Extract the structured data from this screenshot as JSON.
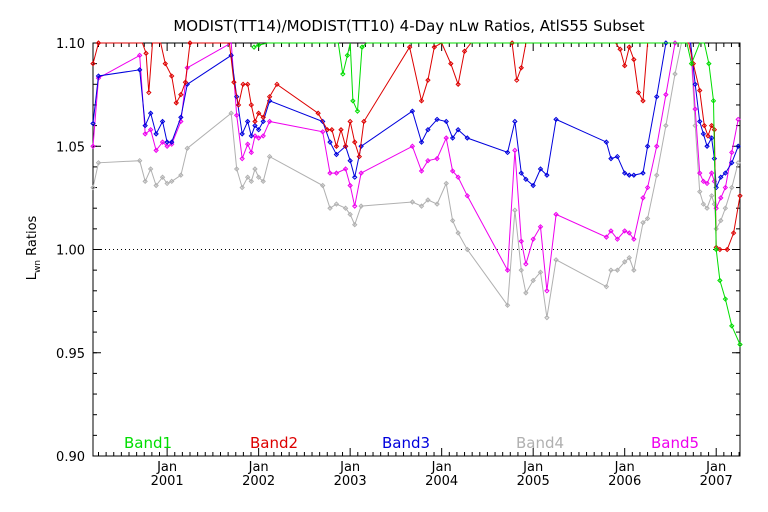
{
  "chart_data": {
    "type": "line",
    "title": "MODIST(TT14)/MODIST(TT10) 4-Day nLw Ratios, AtlS55 Subset",
    "ylabel_main": "L",
    "ylabel_sub": "wn",
    "ylabel_rest": " Ratios",
    "ylim": [
      0.9,
      1.1
    ],
    "xlim": [
      2000.19,
      2007.26
    ],
    "y_ticks": [
      0.9,
      0.95,
      1.0,
      1.05,
      1.1
    ],
    "y_tick_labels": [
      "0.90",
      "0.95",
      "1.00",
      "1.05",
      "1.10"
    ],
    "x_ticks": [
      2001.0,
      2002.0,
      2003.0,
      2004.0,
      2005.0,
      2006.0,
      2007.0
    ],
    "x_tick_month": "Jan",
    "x_tick_labels": [
      "2001",
      "2002",
      "2003",
      "2004",
      "2005",
      "2006",
      "2007"
    ],
    "reference_line": 1.0,
    "series": [
      {
        "name": "Band1",
        "color": "#00dd00",
        "points": [
          [
            2001.95,
            1.098
          ],
          [
            2002.0,
            1.099
          ],
          [
            2002.1,
            1.11
          ],
          [
            2002.87,
            1.11
          ],
          [
            2002.92,
            1.085
          ],
          [
            2002.97,
            1.094
          ],
          [
            2003.0,
            1.11
          ],
          [
            2003.03,
            1.072
          ],
          [
            2003.08,
            1.067
          ],
          [
            2003.13,
            1.098
          ],
          [
            2003.18,
            1.11
          ],
          [
            2006.6,
            1.11
          ],
          [
            2006.68,
            1.108
          ],
          [
            2006.73,
            1.09
          ],
          [
            2006.82,
            1.11
          ],
          [
            2006.87,
            1.11
          ],
          [
            2006.92,
            1.09
          ],
          [
            2006.97,
            1.072
          ],
          [
            2007.0,
            1.0
          ],
          [
            2007.04,
            0.985
          ],
          [
            2007.1,
            0.976
          ],
          [
            2007.17,
            0.963
          ],
          [
            2007.26,
            0.954
          ]
        ]
      },
      {
        "name": "Band2",
        "color": "#dd0000",
        "points": [
          [
            2000.19,
            1.09
          ],
          [
            2000.25,
            1.1
          ],
          [
            2000.28,
            1.11
          ],
          [
            2000.73,
            1.11
          ],
          [
            2000.77,
            1.095
          ],
          [
            2000.8,
            1.076
          ],
          [
            2000.84,
            1.11
          ],
          [
            2000.93,
            1.11
          ],
          [
            2000.98,
            1.09
          ],
          [
            2001.05,
            1.084
          ],
          [
            2001.1,
            1.071
          ],
          [
            2001.15,
            1.075
          ],
          [
            2001.2,
            1.081
          ],
          [
            2001.25,
            1.1
          ],
          [
            2001.3,
            1.11
          ],
          [
            2001.68,
            1.11
          ],
          [
            2001.73,
            1.081
          ],
          [
            2001.78,
            1.07
          ],
          [
            2001.83,
            1.08
          ],
          [
            2001.88,
            1.08
          ],
          [
            2001.92,
            1.07
          ],
          [
            2001.96,
            1.062
          ],
          [
            2002.0,
            1.066
          ],
          [
            2002.05,
            1.064
          ],
          [
            2002.12,
            1.074
          ],
          [
            2002.2,
            1.08
          ],
          [
            2002.65,
            1.066
          ],
          [
            2002.75,
            1.058
          ],
          [
            2002.8,
            1.058
          ],
          [
            2002.85,
            1.05
          ],
          [
            2002.9,
            1.058
          ],
          [
            2002.95,
            1.05
          ],
          [
            2003.0,
            1.062
          ],
          [
            2003.05,
            1.052
          ],
          [
            2003.1,
            1.045
          ],
          [
            2003.15,
            1.062
          ],
          [
            2003.65,
            1.098
          ],
          [
            2003.78,
            1.072
          ],
          [
            2003.85,
            1.082
          ],
          [
            2003.92,
            1.098
          ],
          [
            2004.0,
            1.11
          ],
          [
            2004.1,
            1.09
          ],
          [
            2004.18,
            1.08
          ],
          [
            2004.25,
            1.096
          ],
          [
            2004.32,
            1.11
          ],
          [
            2004.72,
            1.11
          ],
          [
            2004.77,
            1.1
          ],
          [
            2004.82,
            1.082
          ],
          [
            2004.87,
            1.088
          ],
          [
            2004.92,
            1.11
          ],
          [
            2005.9,
            1.11
          ],
          [
            2005.95,
            1.097
          ],
          [
            2006.0,
            1.089
          ],
          [
            2006.05,
            1.098
          ],
          [
            2006.1,
            1.092
          ],
          [
            2006.15,
            1.076
          ],
          [
            2006.2,
            1.072
          ],
          [
            2006.25,
            1.11
          ],
          [
            2006.7,
            1.11
          ],
          [
            2006.75,
            1.09
          ],
          [
            2006.82,
            1.077
          ],
          [
            2006.87,
            1.06
          ],
          [
            2006.91,
            1.055
          ],
          [
            2006.95,
            1.06
          ],
          [
            2006.98,
            1.058
          ],
          [
            2007.0,
            1.001
          ],
          [
            2007.04,
            1.0
          ],
          [
            2007.12,
            1.0
          ],
          [
            2007.19,
            1.008
          ],
          [
            2007.26,
            1.026
          ]
        ]
      },
      {
        "name": "Band3",
        "color": "#0000dd",
        "points": [
          [
            2000.19,
            1.061
          ],
          [
            2000.25,
            1.084
          ],
          [
            2000.7,
            1.087
          ],
          [
            2000.76,
            1.06
          ],
          [
            2000.82,
            1.066
          ],
          [
            2000.88,
            1.056
          ],
          [
            2000.95,
            1.062
          ],
          [
            2001.0,
            1.052
          ],
          [
            2001.05,
            1.052
          ],
          [
            2001.15,
            1.064
          ],
          [
            2001.22,
            1.08
          ],
          [
            2001.7,
            1.094
          ],
          [
            2001.76,
            1.074
          ],
          [
            2001.82,
            1.056
          ],
          [
            2001.88,
            1.062
          ],
          [
            2001.92,
            1.055
          ],
          [
            2001.96,
            1.06
          ],
          [
            2002.0,
            1.058
          ],
          [
            2002.05,
            1.062
          ],
          [
            2002.12,
            1.072
          ],
          [
            2002.7,
            1.062
          ],
          [
            2002.78,
            1.052
          ],
          [
            2002.85,
            1.046
          ],
          [
            2002.95,
            1.05
          ],
          [
            2003.0,
            1.043
          ],
          [
            2003.05,
            1.035
          ],
          [
            2003.12,
            1.05
          ],
          [
            2003.68,
            1.067
          ],
          [
            2003.78,
            1.052
          ],
          [
            2003.85,
            1.058
          ],
          [
            2003.95,
            1.063
          ],
          [
            2004.05,
            1.062
          ],
          [
            2004.12,
            1.054
          ],
          [
            2004.18,
            1.058
          ],
          [
            2004.28,
            1.054
          ],
          [
            2004.72,
            1.047
          ],
          [
            2004.8,
            1.062
          ],
          [
            2004.87,
            1.037
          ],
          [
            2004.92,
            1.034
          ],
          [
            2005.0,
            1.031
          ],
          [
            2005.08,
            1.039
          ],
          [
            2005.15,
            1.036
          ],
          [
            2005.25,
            1.063
          ],
          [
            2005.8,
            1.052
          ],
          [
            2005.85,
            1.044
          ],
          [
            2005.92,
            1.045
          ],
          [
            2006.0,
            1.037
          ],
          [
            2006.05,
            1.036
          ],
          [
            2006.1,
            1.036
          ],
          [
            2006.2,
            1.037
          ],
          [
            2006.25,
            1.05
          ],
          [
            2006.35,
            1.074
          ],
          [
            2006.45,
            1.1
          ],
          [
            2006.52,
            1.11
          ],
          [
            2006.72,
            1.11
          ],
          [
            2006.77,
            1.08
          ],
          [
            2006.82,
            1.062
          ],
          [
            2006.86,
            1.056
          ],
          [
            2006.9,
            1.05
          ],
          [
            2006.95,
            1.054
          ],
          [
            2006.98,
            1.044
          ],
          [
            2007.0,
            1.03
          ],
          [
            2007.05,
            1.035
          ],
          [
            2007.1,
            1.037
          ],
          [
            2007.17,
            1.042
          ],
          [
            2007.24,
            1.05
          ]
        ]
      },
      {
        "name": "Band4",
        "color": "#b0b0b0",
        "points": [
          [
            2000.19,
            1.03
          ],
          [
            2000.25,
            1.042
          ],
          [
            2000.7,
            1.043
          ],
          [
            2000.76,
            1.033
          ],
          [
            2000.82,
            1.039
          ],
          [
            2000.88,
            1.031
          ],
          [
            2000.95,
            1.035
          ],
          [
            2001.0,
            1.032
          ],
          [
            2001.05,
            1.033
          ],
          [
            2001.15,
            1.036
          ],
          [
            2001.22,
            1.049
          ],
          [
            2001.7,
            1.066
          ],
          [
            2001.76,
            1.039
          ],
          [
            2001.82,
            1.03
          ],
          [
            2001.88,
            1.035
          ],
          [
            2001.92,
            1.033
          ],
          [
            2001.96,
            1.039
          ],
          [
            2002.0,
            1.035
          ],
          [
            2002.05,
            1.033
          ],
          [
            2002.12,
            1.045
          ],
          [
            2002.7,
            1.031
          ],
          [
            2002.78,
            1.02
          ],
          [
            2002.85,
            1.022
          ],
          [
            2002.95,
            1.02
          ],
          [
            2003.0,
            1.017
          ],
          [
            2003.05,
            1.012
          ],
          [
            2003.12,
            1.021
          ],
          [
            2003.68,
            1.023
          ],
          [
            2003.78,
            1.021
          ],
          [
            2003.85,
            1.024
          ],
          [
            2003.95,
            1.022
          ],
          [
            2004.05,
            1.032
          ],
          [
            2004.12,
            1.014
          ],
          [
            2004.18,
            1.008
          ],
          [
            2004.28,
            1.0
          ],
          [
            2004.72,
            0.973
          ],
          [
            2004.8,
            1.019
          ],
          [
            2004.87,
            0.99
          ],
          [
            2004.92,
            0.979
          ],
          [
            2005.0,
            0.985
          ],
          [
            2005.08,
            0.989
          ],
          [
            2005.15,
            0.967
          ],
          [
            2005.25,
            0.995
          ],
          [
            2005.8,
            0.982
          ],
          [
            2005.85,
            0.99
          ],
          [
            2005.92,
            0.99
          ],
          [
            2006.0,
            0.994
          ],
          [
            2006.05,
            0.996
          ],
          [
            2006.1,
            0.99
          ],
          [
            2006.2,
            1.013
          ],
          [
            2006.25,
            1.015
          ],
          [
            2006.35,
            1.036
          ],
          [
            2006.45,
            1.06
          ],
          [
            2006.55,
            1.085
          ],
          [
            2006.62,
            1.11
          ],
          [
            2006.72,
            1.11
          ],
          [
            2006.77,
            1.06
          ],
          [
            2006.82,
            1.028
          ],
          [
            2006.86,
            1.022
          ],
          [
            2006.9,
            1.02
          ],
          [
            2006.95,
            1.026
          ],
          [
            2006.98,
            1.022
          ],
          [
            2007.0,
            1.01
          ],
          [
            2007.05,
            1.014
          ],
          [
            2007.1,
            1.02
          ],
          [
            2007.17,
            1.03
          ],
          [
            2007.24,
            1.042
          ]
        ]
      },
      {
        "name": "Band5",
        "color": "#ee00ee",
        "points": [
          [
            2000.19,
            1.05
          ],
          [
            2000.25,
            1.083
          ],
          [
            2000.7,
            1.094
          ],
          [
            2000.76,
            1.056
          ],
          [
            2000.82,
            1.058
          ],
          [
            2000.88,
            1.048
          ],
          [
            2000.95,
            1.052
          ],
          [
            2001.0,
            1.05
          ],
          [
            2001.05,
            1.051
          ],
          [
            2001.15,
            1.062
          ],
          [
            2001.22,
            1.088
          ],
          [
            2001.7,
            1.105
          ],
          [
            2001.76,
            1.065
          ],
          [
            2001.82,
            1.044
          ],
          [
            2001.88,
            1.051
          ],
          [
            2001.92,
            1.047
          ],
          [
            2001.96,
            1.055
          ],
          [
            2002.0,
            1.054
          ],
          [
            2002.05,
            1.055
          ],
          [
            2002.12,
            1.062
          ],
          [
            2002.7,
            1.057
          ],
          [
            2002.78,
            1.037
          ],
          [
            2002.85,
            1.037
          ],
          [
            2002.95,
            1.039
          ],
          [
            2003.0,
            1.031
          ],
          [
            2003.05,
            1.021
          ],
          [
            2003.12,
            1.037
          ],
          [
            2003.68,
            1.05
          ],
          [
            2003.78,
            1.038
          ],
          [
            2003.85,
            1.043
          ],
          [
            2003.95,
            1.044
          ],
          [
            2004.05,
            1.054
          ],
          [
            2004.12,
            1.038
          ],
          [
            2004.18,
            1.035
          ],
          [
            2004.28,
            1.026
          ],
          [
            2004.72,
            0.99
          ],
          [
            2004.8,
            1.048
          ],
          [
            2004.87,
            1.004
          ],
          [
            2004.92,
            0.993
          ],
          [
            2005.0,
            1.005
          ],
          [
            2005.08,
            1.011
          ],
          [
            2005.15,
            0.98
          ],
          [
            2005.25,
            1.017
          ],
          [
            2005.8,
            1.006
          ],
          [
            2005.85,
            1.009
          ],
          [
            2005.92,
            1.005
          ],
          [
            2006.0,
            1.009
          ],
          [
            2006.05,
            1.008
          ],
          [
            2006.1,
            1.005
          ],
          [
            2006.2,
            1.025
          ],
          [
            2006.25,
            1.03
          ],
          [
            2006.35,
            1.05
          ],
          [
            2006.45,
            1.075
          ],
          [
            2006.55,
            1.1
          ],
          [
            2006.6,
            1.11
          ],
          [
            2006.72,
            1.11
          ],
          [
            2006.77,
            1.068
          ],
          [
            2006.82,
            1.037
          ],
          [
            2006.86,
            1.033
          ],
          [
            2006.9,
            1.032
          ],
          [
            2006.95,
            1.037
          ],
          [
            2006.98,
            1.033
          ],
          [
            2007.0,
            1.02
          ],
          [
            2007.05,
            1.025
          ],
          [
            2007.1,
            1.03
          ],
          [
            2007.17,
            1.047
          ],
          [
            2007.24,
            1.063
          ]
        ]
      }
    ]
  }
}
